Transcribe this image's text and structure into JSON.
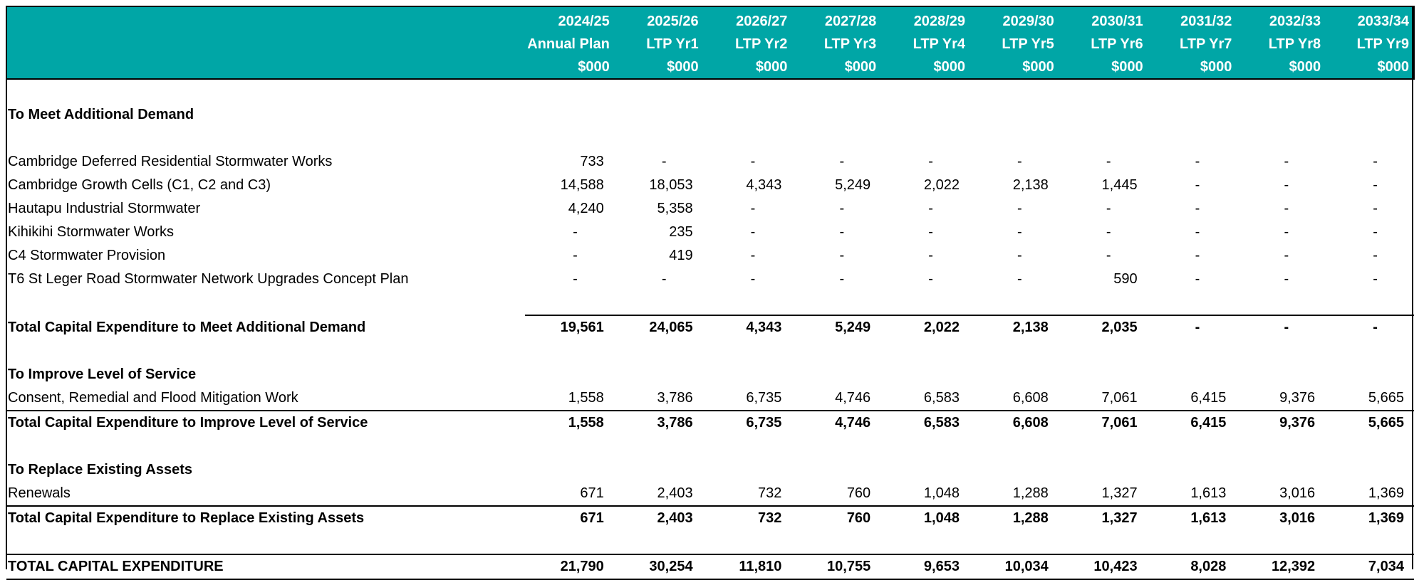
{
  "columns": [
    {
      "year": "2024/25",
      "label": "Annual Plan",
      "unit": "$000"
    },
    {
      "year": "2025/26",
      "label": "LTP Yr1",
      "unit": "$000"
    },
    {
      "year": "2026/27",
      "label": "LTP Yr2",
      "unit": "$000"
    },
    {
      "year": "2027/28",
      "label": "LTP Yr3",
      "unit": "$000"
    },
    {
      "year": "2028/29",
      "label": "LTP Yr4",
      "unit": "$000"
    },
    {
      "year": "2029/30",
      "label": "LTP Yr5",
      "unit": "$000"
    },
    {
      "year": "2030/31",
      "label": "LTP Yr6",
      "unit": "$000"
    },
    {
      "year": "2031/32",
      "label": "LTP Yr7",
      "unit": "$000"
    },
    {
      "year": "2032/33",
      "label": "LTP Yr8",
      "unit": "$000"
    },
    {
      "year": "2033/34",
      "label": "LTP Yr9",
      "unit": "$000"
    }
  ],
  "sections": {
    "demand": {
      "title": "To Meet Additional Demand",
      "rows": [
        {
          "label": "Cambridge Deferred Residential Stormwater Works",
          "values": [
            "733",
            "-",
            "-",
            "-",
            "-",
            "-",
            "-",
            "-",
            "-",
            "-"
          ]
        },
        {
          "label": "Cambridge Growth Cells (C1, C2 and C3)",
          "values": [
            "14,588",
            "18,053",
            "4,343",
            "5,249",
            "2,022",
            "2,138",
            "1,445",
            "-",
            "-",
            "-"
          ]
        },
        {
          "label": "Hautapu Industrial Stormwater",
          "values": [
            "4,240",
            "5,358",
            "-",
            "-",
            "-",
            "-",
            "-",
            "-",
            "-",
            "-"
          ]
        },
        {
          "label": "Kihikihi Stormwater Works",
          "values": [
            "-",
            "235",
            "-",
            "-",
            "-",
            "-",
            "-",
            "-",
            "-",
            "-"
          ]
        },
        {
          "label": "C4 Stormwater Provision",
          "values": [
            "-",
            "419",
            "-",
            "-",
            "-",
            "-",
            "-",
            "-",
            "-",
            "-"
          ]
        },
        {
          "label": "T6 St Leger Road Stormwater Network Upgrades Concept Plan",
          "values": [
            "-",
            "-",
            "-",
            "-",
            "-",
            "-",
            "590",
            "-",
            "-",
            "-"
          ]
        }
      ],
      "total": {
        "label": "Total Capital Expenditure to Meet Additional Demand",
        "values": [
          "19,561",
          "24,065",
          "4,343",
          "5,249",
          "2,022",
          "2,138",
          "2,035",
          "-",
          "-",
          "-"
        ]
      }
    },
    "service": {
      "title": "To Improve Level of Service",
      "rows": [
        {
          "label": "Consent, Remedial and Flood Mitigation Work",
          "values": [
            "1,558",
            "3,786",
            "6,735",
            "4,746",
            "6,583",
            "6,608",
            "7,061",
            "6,415",
            "9,376",
            "5,665"
          ]
        }
      ],
      "total": {
        "label": "Total Capital Expenditure to Improve Level of Service",
        "values": [
          "1,558",
          "3,786",
          "6,735",
          "4,746",
          "6,583",
          "6,608",
          "7,061",
          "6,415",
          "9,376",
          "5,665"
        ]
      }
    },
    "replace": {
      "title": "To Replace Existing Assets",
      "rows": [
        {
          "label": "Renewals",
          "values": [
            "671",
            "2,403",
            "732",
            "760",
            "1,048",
            "1,288",
            "1,327",
            "1,613",
            "3,016",
            "1,369"
          ]
        }
      ],
      "total": {
        "label": "Total Capital Expenditure to Replace Existing Assets",
        "values": [
          "671",
          "2,403",
          "732",
          "760",
          "1,048",
          "1,288",
          "1,327",
          "1,613",
          "3,016",
          "1,369"
        ]
      }
    }
  },
  "grand_total": {
    "label": "TOTAL CAPITAL EXPENDITURE",
    "values": [
      "21,790",
      "30,254",
      "11,810",
      "10,755",
      "9,653",
      "10,034",
      "10,423",
      "8,028",
      "12,392",
      "7,034"
    ]
  },
  "colors": {
    "header_bg": "#00A6A6",
    "header_text": "#FFFFFF"
  }
}
